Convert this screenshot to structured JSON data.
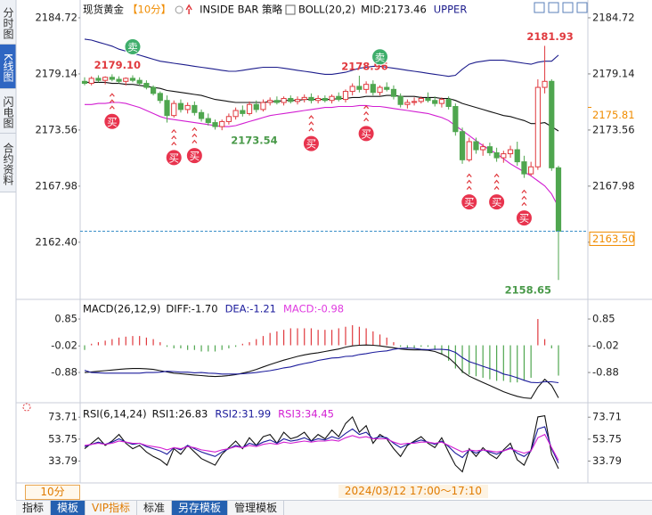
{
  "ui": {
    "side_tabs": [
      "分时图",
      "K线图",
      "闪电图",
      "合约资料"
    ],
    "toolbar": [
      "指标",
      "模板",
      "VIP指标",
      "标准",
      "另存模板",
      "管理模板"
    ],
    "period": "10分",
    "crosshair_time": "2024/03/12 17:00～17:10 二"
  },
  "chart_data": [
    {
      "type": "candlestick",
      "title": "现货黄金",
      "period": "【10分】",
      "strategy": "INSIDE BAR 策略",
      "indicator": "BOLL(20,2)",
      "up_color": "#e0393e",
      "down_color": "#4fa64f",
      "open": [
        2178.4,
        2178.2,
        2178.7,
        2178.5,
        2178.8,
        2178.6,
        2178.4,
        2178.7,
        2178.5,
        2178.2,
        2177.8,
        2177.2,
        2176.5,
        2175.0,
        2176.2,
        2175.6,
        2176.0,
        2175.3,
        2174.7,
        2174.3,
        2173.9,
        2174.4,
        2174.9,
        2175.5,
        2175.2,
        2176.1,
        2175.6,
        2176.3,
        2176.5,
        2176.3,
        2176.7,
        2176.4,
        2176.6,
        2176.8,
        2176.5,
        2176.7,
        2176.5,
        2176.9,
        2176.6,
        2177.4,
        2177.9,
        2177.6,
        2178.1,
        2177.3,
        2177.8,
        2177.6,
        2176.9,
        2176.1,
        2176.3,
        2176.4,
        2176.7,
        2176.5,
        2176.2,
        2176.6,
        2175.9,
        2173.4,
        2170.6,
        2172.4,
        2171.6,
        2171.9,
        2171.3,
        2170.8,
        2171.2,
        2171.6,
        2170.4,
        2169.2,
        2169.9,
        2177.8,
        2178.4,
        2169.8
      ],
      "high": [
        2178.8,
        2178.9,
        2179.0,
        2178.9,
        2179.1,
        2178.9,
        2178.8,
        2179.0,
        2178.8,
        2178.5,
        2178.0,
        2177.4,
        2177.0,
        2176.5,
        2176.6,
        2176.3,
        2176.4,
        2175.6,
        2175.2,
        2174.6,
        2174.6,
        2175.2,
        2175.8,
        2176.0,
        2176.4,
        2176.5,
        2176.6,
        2176.8,
        2176.9,
        2176.9,
        2177.0,
        2176.9,
        2177.1,
        2177.2,
        2177.0,
        2177.0,
        2177.1,
        2177.3,
        2177.6,
        2178.2,
        2178.96,
        2178.4,
        2178.5,
        2178.0,
        2178.3,
        2178.0,
        2177.2,
        2176.6,
        2176.8,
        2176.9,
        2177.3,
        2176.9,
        2176.8,
        2176.9,
        2176.2,
        2173.8,
        2172.8,
        2172.8,
        2172.2,
        2172.3,
        2171.8,
        2171.5,
        2172.0,
        2172.4,
        2171.0,
        2170.4,
        2178.6,
        2181.93,
        2178.6,
        2170.0
      ],
      "low": [
        2178.0,
        2178.0,
        2178.3,
        2178.1,
        2178.4,
        2178.2,
        2178.0,
        2178.3,
        2178.0,
        2177.6,
        2177.0,
        2176.2,
        2174.3,
        2174.8,
        2175.3,
        2175.2,
        2175.0,
        2174.4,
        2174.0,
        2173.6,
        2173.54,
        2174.1,
        2174.6,
        2174.9,
        2175.0,
        2175.3,
        2175.4,
        2176.0,
        2176.1,
        2176.0,
        2176.2,
        2176.1,
        2176.3,
        2176.2,
        2176.2,
        2176.3,
        2176.2,
        2176.4,
        2176.3,
        2177.0,
        2177.3,
        2177.2,
        2177.0,
        2177.0,
        2177.4,
        2176.6,
        2175.8,
        2175.7,
        2176.0,
        2176.2,
        2176.3,
        2175.9,
        2175.8,
        2175.6,
        2173.0,
        2170.2,
        2170.4,
        2171.2,
        2171.0,
        2171.0,
        2170.4,
        2170.3,
        2170.8,
        2170.0,
        2168.8,
        2169.0,
        2169.6,
        2177.2,
        2169.5,
        2158.65
      ],
      "close": [
        2178.2,
        2178.7,
        2178.5,
        2178.8,
        2178.6,
        2178.4,
        2178.7,
        2178.5,
        2178.2,
        2177.8,
        2177.2,
        2176.5,
        2175.0,
        2176.2,
        2175.6,
        2176.0,
        2175.3,
        2174.7,
        2174.3,
        2173.9,
        2174.4,
        2174.9,
        2175.5,
        2175.2,
        2176.1,
        2175.6,
        2176.3,
        2176.5,
        2176.3,
        2176.7,
        2176.4,
        2176.6,
        2176.8,
        2176.5,
        2176.7,
        2176.5,
        2176.9,
        2176.6,
        2177.4,
        2177.9,
        2177.6,
        2178.1,
        2177.3,
        2177.8,
        2177.6,
        2176.9,
        2176.1,
        2176.3,
        2176.4,
        2176.7,
        2176.5,
        2176.2,
        2176.6,
        2175.9,
        2173.4,
        2170.6,
        2172.4,
        2171.6,
        2171.9,
        2171.3,
        2170.8,
        2171.2,
        2171.6,
        2170.4,
        2169.2,
        2169.9,
        2177.8,
        2178.4,
        2169.8,
        2163.5
      ],
      "series": [
        {
          "name": "MID:2173.46",
          "color": "#111111",
          "values": [
            2178.3,
            2178.3,
            2178.3,
            2178.3,
            2178.2,
            2178.2,
            2178.1,
            2178.1,
            2178.0,
            2177.9,
            2177.8,
            2177.7,
            2177.5,
            2177.4,
            2177.3,
            2177.2,
            2177.1,
            2177.0,
            2176.8,
            2176.6,
            2176.5,
            2176.4,
            2176.3,
            2176.3,
            2176.3,
            2176.3,
            2176.3,
            2176.4,
            2176.4,
            2176.5,
            2176.5,
            2176.5,
            2176.6,
            2176.6,
            2176.6,
            2176.6,
            2176.6,
            2176.7,
            2176.7,
            2176.8,
            2176.8,
            2176.9,
            2176.9,
            2176.9,
            2177.0,
            2177.0,
            2176.9,
            2176.9,
            2176.9,
            2176.8,
            2176.8,
            2176.8,
            2176.7,
            2176.7,
            2176.5,
            2176.2,
            2176.0,
            2175.8,
            2175.6,
            2175.4,
            2175.2,
            2175.0,
            2174.9,
            2174.7,
            2174.5,
            2174.2,
            2174.2,
            2174.3,
            2173.9,
            2173.46
          ]
        },
        {
          "name": "UPPER",
          "color": "#1c1c8c",
          "values": [
            2182.6,
            2182.5,
            2182.3,
            2182.1,
            2181.9,
            2181.6,
            2181.4,
            2181.2,
            2181.0,
            2180.8,
            2180.6,
            2180.4,
            2180.3,
            2180.2,
            2180.1,
            2180.0,
            2179.9,
            2179.8,
            2179.7,
            2179.6,
            2179.5,
            2179.4,
            2179.4,
            2179.5,
            2179.6,
            2179.7,
            2179.8,
            2179.8,
            2179.8,
            2179.7,
            2179.6,
            2179.5,
            2179.4,
            2179.3,
            2179.2,
            2179.1,
            2179.1,
            2179.2,
            2179.3,
            2179.5,
            2179.7,
            2179.8,
            2179.9,
            2179.9,
            2179.8,
            2179.7,
            2179.6,
            2179.5,
            2179.4,
            2179.3,
            2179.2,
            2179.1,
            2179.0,
            2178.9,
            2179.0,
            2179.6,
            2180.1,
            2180.3,
            2180.4,
            2180.5,
            2180.5,
            2180.5,
            2180.4,
            2180.3,
            2180.2,
            2180.1,
            2180.3,
            2180.4,
            2180.4,
            2181.0
          ]
        },
        {
          "color": "#d21ed2",
          "values": [
            2176.1,
            2176.1,
            2176.2,
            2176.2,
            2176.3,
            2176.3,
            2176.2,
            2176.0,
            2175.8,
            2175.5,
            2175.2,
            2174.9,
            2174.7,
            2174.6,
            2174.5,
            2174.4,
            2174.3,
            2174.2,
            2174.1,
            2174.0,
            2173.9,
            2173.9,
            2174.0,
            2174.2,
            2174.4,
            2174.6,
            2174.8,
            2175.0,
            2175.1,
            2175.2,
            2175.3,
            2175.4,
            2175.5,
            2175.6,
            2175.7,
            2175.8,
            2175.8,
            2175.9,
            2175.9,
            2175.9,
            2176.0,
            2176.0,
            2175.9,
            2175.9,
            2175.8,
            2175.7,
            2175.6,
            2175.5,
            2175.4,
            2175.3,
            2175.2,
            2175.0,
            2174.8,
            2174.5,
            2174.0,
            2173.5,
            2173.0,
            2172.5,
            2172.0,
            2171.6,
            2171.2,
            2170.7,
            2170.2,
            2169.8,
            2169.4,
            2169.0,
            2168.5,
            2168.0,
            2167.2,
            2165.9
          ]
        }
      ],
      "annotations": [
        {
          "candle": 4,
          "value": 2179.1,
          "label": "2179.10",
          "color": "#e0393e"
        },
        {
          "candle": 40,
          "value": 2178.96,
          "label": "2178.96",
          "color": "#e0393e"
        },
        {
          "candle": 67,
          "value": 2181.93,
          "label": "2181.93",
          "color": "#e0393e"
        },
        {
          "candle": 20,
          "value": 2173.54,
          "label": "2173.54",
          "color": "#4a9a4a"
        },
        {
          "candle": 69,
          "value": 2158.65,
          "label": "2158.65",
          "color": "#4a9a4a"
        }
      ],
      "signals": [
        {
          "candle": 7,
          "label": "卖"
        },
        {
          "candle": 43,
          "label": "卖"
        },
        {
          "candle": 4,
          "label": "买"
        },
        {
          "candle": 13,
          "label": "买"
        },
        {
          "candle": 16,
          "label": "买"
        },
        {
          "candle": 33,
          "label": "买"
        },
        {
          "candle": 41,
          "label": "买"
        },
        {
          "candle": 56,
          "label": "买"
        },
        {
          "candle": 60,
          "label": "买"
        },
        {
          "candle": 64,
          "label": "买"
        }
      ],
      "markers": [
        {
          "value": 2175.81,
          "label": "2175.81"
        }
      ],
      "last_price": {
        "value": 2163.5,
        "label": "2163.50"
      },
      "ylim": [
        2157.25,
        2185.78
      ],
      "yticks": [
        2184.72,
        2179.14,
        2173.56,
        2167.98,
        {
          "value": 2162.4,
          "label": "2162.40"
        }
      ],
      "grid": false
    },
    {
      "type": "macd",
      "title": "MACD(26,12,9)",
      "up_color": "#e0393e",
      "down_color": "#4fa64f",
      "series": [
        {
          "name": "DIFF:-1.70",
          "color": "#111111",
          "values": [
            -0.88,
            -0.86,
            -0.84,
            -0.82,
            -0.8,
            -0.78,
            -0.76,
            -0.75,
            -0.75,
            -0.76,
            -0.78,
            -0.82,
            -0.86,
            -0.9,
            -0.92,
            -0.94,
            -0.96,
            -0.98,
            -1.0,
            -1.01,
            -1.0,
            -0.98,
            -0.95,
            -0.9,
            -0.85,
            -0.78,
            -0.7,
            -0.62,
            -0.55,
            -0.48,
            -0.42,
            -0.36,
            -0.31,
            -0.27,
            -0.24,
            -0.2,
            -0.16,
            -0.12,
            -0.06,
            -0.02,
            0.0,
            0.01,
            0.0,
            -0.02,
            -0.05,
            -0.08,
            -0.12,
            -0.14,
            -0.15,
            -0.15,
            -0.16,
            -0.2,
            -0.28,
            -0.4,
            -0.6,
            -0.85,
            -1.0,
            -1.1,
            -1.2,
            -1.3,
            -1.4,
            -1.5,
            -1.58,
            -1.65,
            -1.7,
            -1.72,
            -1.35,
            -1.1,
            -1.3,
            -1.7
          ]
        },
        {
          "name": "DEA:-1.21",
          "color": "#1c1c9c",
          "values": [
            -0.81,
            -0.88,
            -0.89,
            -0.9,
            -0.9,
            -0.9,
            -0.9,
            -0.9,
            -0.9,
            -0.88,
            -0.88,
            -0.87,
            -0.84,
            -0.85,
            -0.87,
            -0.87,
            -0.89,
            -0.88,
            -0.9,
            -0.91,
            -0.93,
            -0.93,
            -0.93,
            -0.92,
            -0.9,
            -0.88,
            -0.85,
            -0.82,
            -0.78,
            -0.73,
            -0.7,
            -0.64,
            -0.59,
            -0.55,
            -0.49,
            -0.45,
            -0.41,
            -0.4,
            -0.36,
            -0.35,
            -0.3,
            -0.27,
            -0.23,
            -0.2,
            -0.18,
            -0.13,
            -0.1,
            -0.09,
            -0.1,
            -0.13,
            -0.14,
            -0.13,
            -0.13,
            -0.15,
            -0.23,
            -0.4,
            -0.53,
            -0.6,
            -0.68,
            -0.75,
            -0.83,
            -0.93,
            -0.98,
            -1.05,
            -1.13,
            -1.2,
            -1.21,
            -1.18,
            -1.18,
            -1.21
          ]
        },
        {
          "name": "MACD:-0.98",
          "color": "#e03ce0",
          "values": [
            -0.15,
            0.05,
            0.1,
            0.15,
            0.2,
            0.25,
            0.28,
            0.3,
            0.3,
            0.25,
            0.2,
            0.1,
            -0.05,
            -0.1,
            -0.1,
            -0.15,
            -0.15,
            -0.2,
            -0.2,
            -0.2,
            -0.15,
            -0.1,
            -0.05,
            0.05,
            0.1,
            0.2,
            0.3,
            0.4,
            0.45,
            0.5,
            0.55,
            0.55,
            0.55,
            0.55,
            0.5,
            0.5,
            0.5,
            0.55,
            0.6,
            0.65,
            0.6,
            0.55,
            0.45,
            0.35,
            0.25,
            0.1,
            -0.05,
            -0.1,
            -0.1,
            -0.05,
            -0.05,
            -0.15,
            -0.3,
            -0.5,
            -0.75,
            -0.9,
            -0.95,
            -1.0,
            -1.05,
            -1.1,
            -1.15,
            -1.15,
            -1.2,
            -1.2,
            -1.15,
            -1.05,
            0.85,
            0.2,
            -0.1,
            -0.98
          ]
        }
      ],
      "ylim": [
        -1.8,
        1.37
      ],
      "yticks": [
        0.85,
        -0.02,
        -0.88
      ],
      "grid": false
    },
    {
      "type": "line",
      "title": "RSI(6,14,24)",
      "series": [
        {
          "name": "RSI1:26.83",
          "color": "#111111",
          "values": [
            45,
            50,
            55,
            48,
            52,
            58,
            50,
            45,
            48,
            42,
            38,
            35,
            30,
            45,
            40,
            48,
            42,
            36,
            33,
            30,
            40,
            46,
            52,
            45,
            55,
            48,
            56,
            58,
            50,
            60,
            54,
            56,
            60,
            52,
            58,
            54,
            62,
            56,
            68,
            74,
            60,
            66,
            50,
            58,
            54,
            45,
            38,
            48,
            52,
            56,
            50,
            46,
            55,
            42,
            30,
            24,
            45,
            38,
            46,
            40,
            36,
            44,
            50,
            35,
            30,
            44,
            74,
            75,
            40,
            26.83
          ]
        },
        {
          "name": "RSI2:31.99",
          "color": "#1c1c9c",
          "values": [
            47,
            49,
            51,
            49,
            51,
            54,
            51,
            49,
            50,
            47,
            45,
            43,
            40,
            46,
            44,
            48,
            45,
            42,
            40,
            38,
            42,
            45,
            48,
            46,
            50,
            48,
            51,
            53,
            50,
            54,
            52,
            53,
            55,
            52,
            54,
            53,
            56,
            54,
            59,
            63,
            58,
            60,
            54,
            56,
            55,
            50,
            46,
            49,
            51,
            53,
            51,
            49,
            52,
            47,
            41,
            37,
            44,
            41,
            44,
            42,
            40,
            43,
            46,
            41,
            38,
            43,
            63,
            65,
            45,
            31.99
          ]
        },
        {
          "name": "RSI3:34.45",
          "color": "#d21ed2",
          "values": [
            48,
            49,
            50,
            49,
            50,
            52,
            51,
            50,
            50,
            48,
            47,
            46,
            44,
            46,
            45,
            47,
            46,
            44,
            43,
            42,
            44,
            45,
            47,
            46,
            48,
            47,
            49,
            50,
            49,
            51,
            50,
            51,
            52,
            51,
            52,
            52,
            53,
            52,
            55,
            57,
            55,
            56,
            54,
            54,
            54,
            51,
            49,
            50,
            50,
            51,
            51,
            50,
            51,
            48,
            45,
            42,
            44,
            43,
            44,
            43,
            42,
            43,
            45,
            43,
            41,
            43,
            55,
            58,
            46,
            34.45
          ]
        }
      ],
      "ylim": [
        15.5,
        82
      ],
      "yticks": [
        73.71,
        53.75,
        33.79
      ],
      "grid": false
    }
  ]
}
